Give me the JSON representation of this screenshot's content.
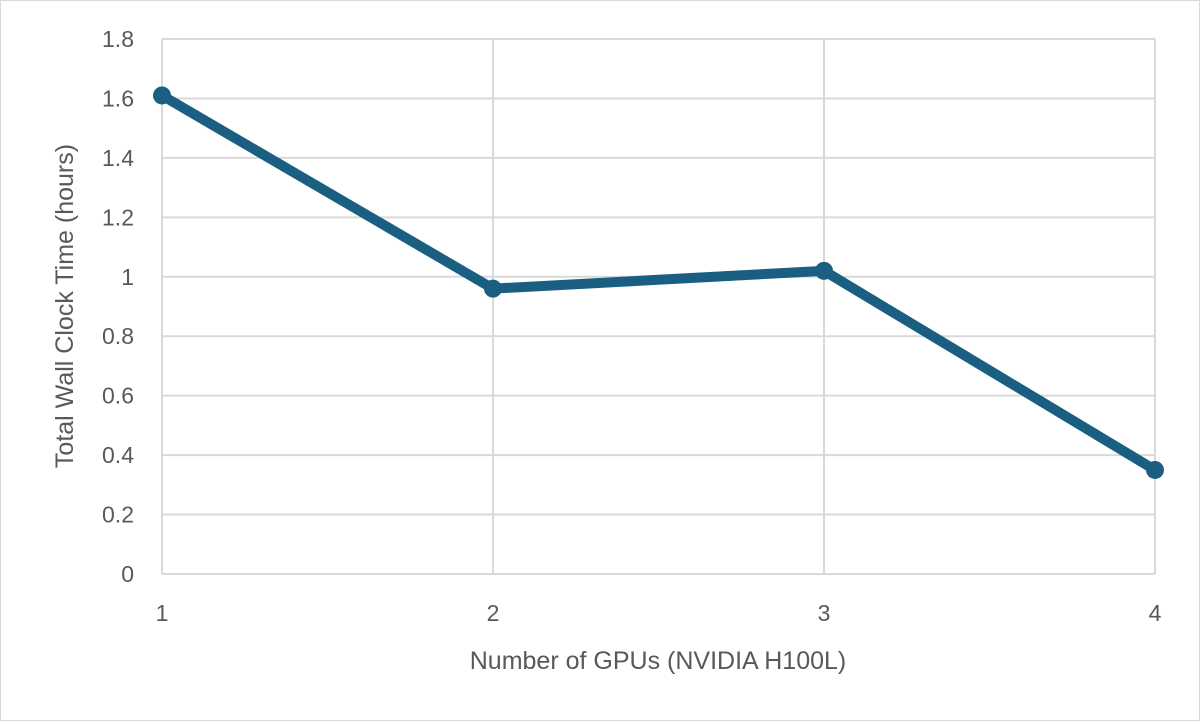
{
  "chart_data": {
    "type": "line",
    "title": "",
    "xlabel": "Number of GPUs (NVIDIA H100L)",
    "ylabel": "Total Wall Clock Time (hours)",
    "x": [
      1,
      2,
      3,
      4
    ],
    "x_tick_labels": [
      "1",
      "2",
      "3",
      "4"
    ],
    "y_tick_labels": [
      "0",
      "0.2",
      "0.4",
      "0.6",
      "0.8",
      "1",
      "1.2",
      "1.4",
      "1.6",
      "1.8"
    ],
    "ylim": [
      0,
      1.8
    ],
    "xlim": [
      1,
      4
    ],
    "grid": true,
    "legend": "none",
    "series": [
      {
        "values": [
          1.61,
          0.96,
          1.02,
          0.35
        ],
        "color": "#1a5e82",
        "markers": true
      }
    ]
  }
}
